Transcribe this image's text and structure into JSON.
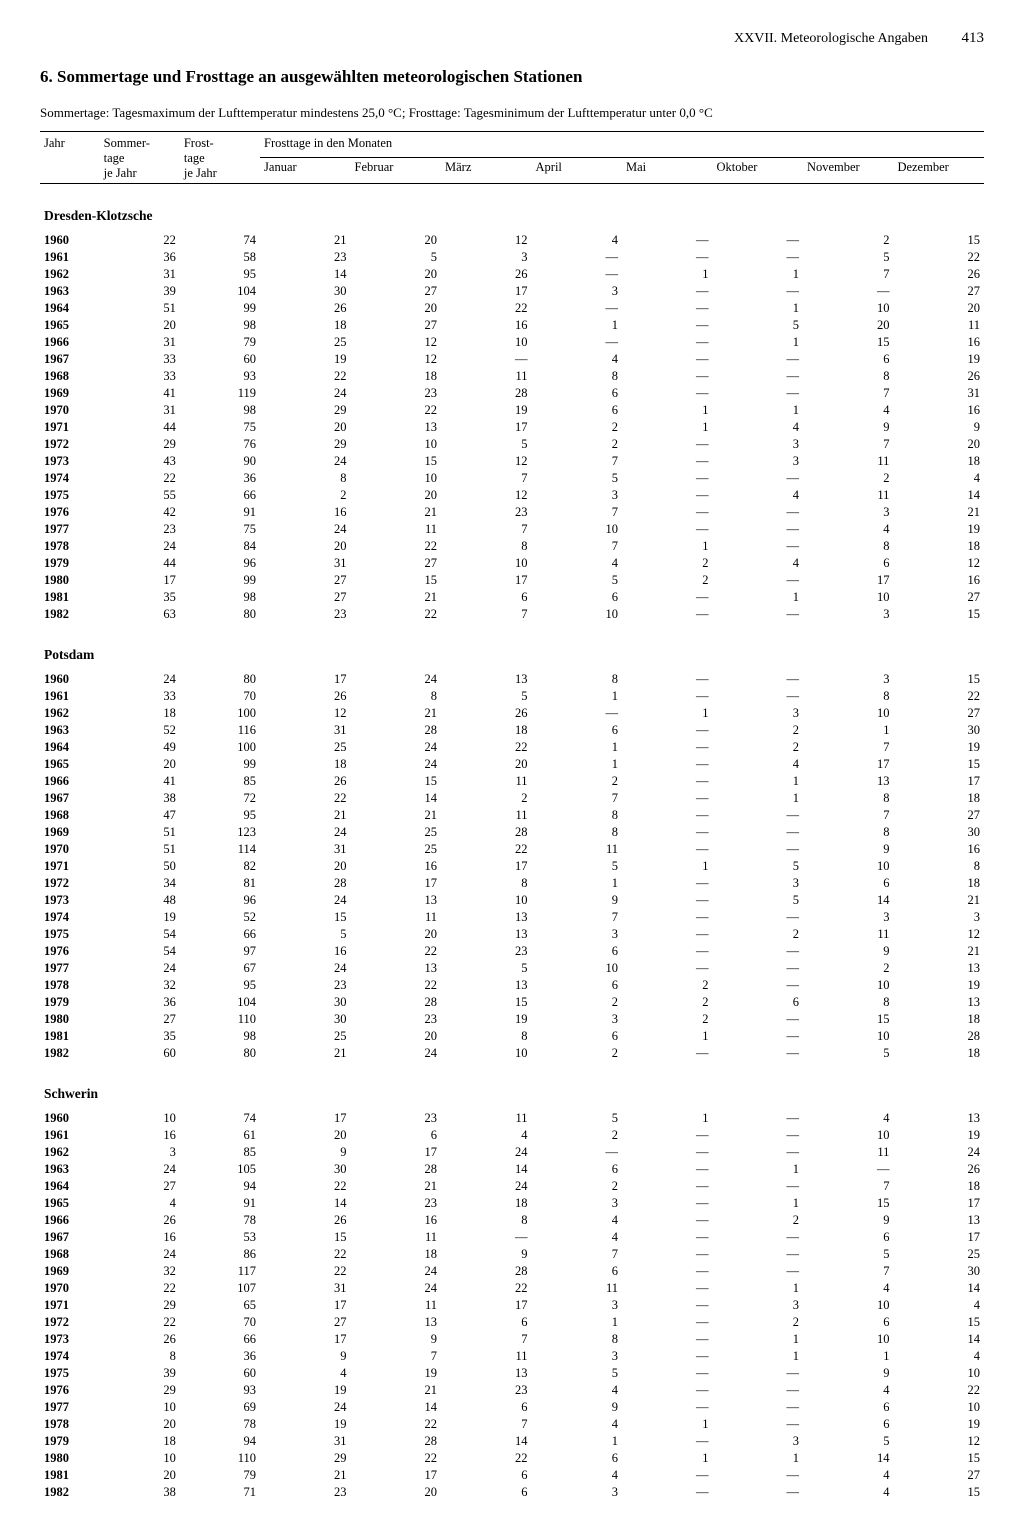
{
  "header": {
    "chapter": "XXVII. Meteorologische Angaben",
    "pagenum": "413"
  },
  "title": "6. Sommertage und Frosttage an ausgewählten meteorologischen Stationen",
  "subtitle": "Sommertage: Tagesmaximum der Lufttemperatur mindestens 25,0 °C; Frosttage: Tagesminimum der Lufttemperatur unter 0,0 °C",
  "table": {
    "col_year": "Jahr",
    "col_summer": "Sommer-\ntage\nje Jahr",
    "col_frost": "Frost-\ntage\nje Jahr",
    "col_group_frost_months": "Frosttage in den Monaten",
    "months": [
      "Januar",
      "Februar",
      "März",
      "April",
      "Mai",
      "Oktober",
      "November",
      "Dezember"
    ],
    "stations": [
      {
        "name": "Dresden-Klotzsche",
        "rows": [
          [
            "1960",
            "22",
            "74",
            "21",
            "20",
            "12",
            "4",
            "—",
            "—",
            "2",
            "15"
          ],
          [
            "1961",
            "36",
            "58",
            "23",
            "5",
            "3",
            "—",
            "—",
            "—",
            "5",
            "22"
          ],
          [
            "1962",
            "31",
            "95",
            "14",
            "20",
            "26",
            "—",
            "1",
            "1",
            "7",
            "26"
          ],
          [
            "1963",
            "39",
            "104",
            "30",
            "27",
            "17",
            "3",
            "—",
            "—",
            "—",
            "27"
          ],
          [
            "1964",
            "51",
            "99",
            "26",
            "20",
            "22",
            "—",
            "—",
            "1",
            "10",
            "20"
          ],
          [
            "1965",
            "20",
            "98",
            "18",
            "27",
            "16",
            "1",
            "—",
            "5",
            "20",
            "11"
          ],
          [
            "1966",
            "31",
            "79",
            "25",
            "12",
            "10",
            "—",
            "—",
            "1",
            "15",
            "16"
          ],
          [
            "1967",
            "33",
            "60",
            "19",
            "12",
            "—",
            "4",
            "—",
            "—",
            "6",
            "19"
          ],
          [
            "1968",
            "33",
            "93",
            "22",
            "18",
            "11",
            "8",
            "—",
            "—",
            "8",
            "26"
          ],
          [
            "1969",
            "41",
            "119",
            "24",
            "23",
            "28",
            "6",
            "—",
            "—",
            "7",
            "31"
          ],
          [
            "1970",
            "31",
            "98",
            "29",
            "22",
            "19",
            "6",
            "1",
            "1",
            "4",
            "16"
          ],
          [
            "1971",
            "44",
            "75",
            "20",
            "13",
            "17",
            "2",
            "1",
            "4",
            "9",
            "9"
          ],
          [
            "1972",
            "29",
            "76",
            "29",
            "10",
            "5",
            "2",
            "—",
            "3",
            "7",
            "20"
          ],
          [
            "1973",
            "43",
            "90",
            "24",
            "15",
            "12",
            "7",
            "—",
            "3",
            "11",
            "18"
          ],
          [
            "1974",
            "22",
            "36",
            "8",
            "10",
            "7",
            "5",
            "—",
            "—",
            "2",
            "4"
          ],
          [
            "1975",
            "55",
            "66",
            "2",
            "20",
            "12",
            "3",
            "—",
            "4",
            "11",
            "14"
          ],
          [
            "1976",
            "42",
            "91",
            "16",
            "21",
            "23",
            "7",
            "—",
            "—",
            "3",
            "21"
          ],
          [
            "1977",
            "23",
            "75",
            "24",
            "11",
            "7",
            "10",
            "—",
            "—",
            "4",
            "19"
          ],
          [
            "1978",
            "24",
            "84",
            "20",
            "22",
            "8",
            "7",
            "1",
            "—",
            "8",
            "18"
          ],
          [
            "1979",
            "44",
            "96",
            "31",
            "27",
            "10",
            "4",
            "2",
            "4",
            "6",
            "12"
          ],
          [
            "1980",
            "17",
            "99",
            "27",
            "15",
            "17",
            "5",
            "2",
            "—",
            "17",
            "16"
          ],
          [
            "1981",
            "35",
            "98",
            "27",
            "21",
            "6",
            "6",
            "—",
            "1",
            "10",
            "27"
          ],
          [
            "1982",
            "63",
            "80",
            "23",
            "22",
            "7",
            "10",
            "—",
            "—",
            "3",
            "15"
          ]
        ]
      },
      {
        "name": "Potsdam",
        "rows": [
          [
            "1960",
            "24",
            "80",
            "17",
            "24",
            "13",
            "8",
            "—",
            "—",
            "3",
            "15"
          ],
          [
            "1961",
            "33",
            "70",
            "26",
            "8",
            "5",
            "1",
            "—",
            "—",
            "8",
            "22"
          ],
          [
            "1962",
            "18",
            "100",
            "12",
            "21",
            "26",
            "—",
            "1",
            "3",
            "10",
            "27"
          ],
          [
            "1963",
            "52",
            "116",
            "31",
            "28",
            "18",
            "6",
            "—",
            "2",
            "1",
            "30"
          ],
          [
            "1964",
            "49",
            "100",
            "25",
            "24",
            "22",
            "1",
            "—",
            "2",
            "7",
            "19"
          ],
          [
            "1965",
            "20",
            "99",
            "18",
            "24",
            "20",
            "1",
            "—",
            "4",
            "17",
            "15"
          ],
          [
            "1966",
            "41",
            "85",
            "26",
            "15",
            "11",
            "2",
            "—",
            "1",
            "13",
            "17"
          ],
          [
            "1967",
            "38",
            "72",
            "22",
            "14",
            "2",
            "7",
            "—",
            "1",
            "8",
            "18"
          ],
          [
            "1968",
            "47",
            "95",
            "21",
            "21",
            "11",
            "8",
            "—",
            "—",
            "7",
            "27"
          ],
          [
            "1969",
            "51",
            "123",
            "24",
            "25",
            "28",
            "8",
            "—",
            "—",
            "8",
            "30"
          ],
          [
            "1970",
            "51",
            "114",
            "31",
            "25",
            "22",
            "11",
            "—",
            "—",
            "9",
            "16"
          ],
          [
            "1971",
            "50",
            "82",
            "20",
            "16",
            "17",
            "5",
            "1",
            "5",
            "10",
            "8"
          ],
          [
            "1972",
            "34",
            "81",
            "28",
            "17",
            "8",
            "1",
            "—",
            "3",
            "6",
            "18"
          ],
          [
            "1973",
            "48",
            "96",
            "24",
            "13",
            "10",
            "9",
            "—",
            "5",
            "14",
            "21"
          ],
          [
            "1974",
            "19",
            "52",
            "15",
            "11",
            "13",
            "7",
            "—",
            "—",
            "3",
            "3"
          ],
          [
            "1975",
            "54",
            "66",
            "5",
            "20",
            "13",
            "3",
            "—",
            "2",
            "11",
            "12"
          ],
          [
            "1976",
            "54",
            "97",
            "16",
            "22",
            "23",
            "6",
            "—",
            "—",
            "9",
            "21"
          ],
          [
            "1977",
            "24",
            "67",
            "24",
            "13",
            "5",
            "10",
            "—",
            "—",
            "2",
            "13"
          ],
          [
            "1978",
            "32",
            "95",
            "23",
            "22",
            "13",
            "6",
            "2",
            "—",
            "10",
            "19"
          ],
          [
            "1979",
            "36",
            "104",
            "30",
            "28",
            "15",
            "2",
            "2",
            "6",
            "8",
            "13"
          ],
          [
            "1980",
            "27",
            "110",
            "30",
            "23",
            "19",
            "3",
            "2",
            "—",
            "15",
            "18"
          ],
          [
            "1981",
            "35",
            "98",
            "25",
            "20",
            "8",
            "6",
            "1",
            "—",
            "10",
            "28"
          ],
          [
            "1982",
            "60",
            "80",
            "21",
            "24",
            "10",
            "2",
            "—",
            "—",
            "5",
            "18"
          ]
        ]
      },
      {
        "name": "Schwerin",
        "rows": [
          [
            "1960",
            "10",
            "74",
            "17",
            "23",
            "11",
            "5",
            "1",
            "—",
            "4",
            "13"
          ],
          [
            "1961",
            "16",
            "61",
            "20",
            "6",
            "4",
            "2",
            "—",
            "—",
            "10",
            "19"
          ],
          [
            "1962",
            "3",
            "85",
            "9",
            "17",
            "24",
            "—",
            "—",
            "—",
            "11",
            "24"
          ],
          [
            "1963",
            "24",
            "105",
            "30",
            "28",
            "14",
            "6",
            "—",
            "1",
            "—",
            "26"
          ],
          [
            "1964",
            "27",
            "94",
            "22",
            "21",
            "24",
            "2",
            "—",
            "—",
            "7",
            "18"
          ],
          [
            "1965",
            "4",
            "91",
            "14",
            "23",
            "18",
            "3",
            "—",
            "1",
            "15",
            "17"
          ],
          [
            "1966",
            "26",
            "78",
            "26",
            "16",
            "8",
            "4",
            "—",
            "2",
            "9",
            "13"
          ],
          [
            "1967",
            "16",
            "53",
            "15",
            "11",
            "—",
            "4",
            "—",
            "—",
            "6",
            "17"
          ],
          [
            "1968",
            "24",
            "86",
            "22",
            "18",
            "9",
            "7",
            "—",
            "—",
            "5",
            "25"
          ],
          [
            "1969",
            "32",
            "117",
            "22",
            "24",
            "28",
            "6",
            "—",
            "—",
            "7",
            "30"
          ],
          [
            "1970",
            "22",
            "107",
            "31",
            "24",
            "22",
            "11",
            "—",
            "1",
            "4",
            "14"
          ],
          [
            "1971",
            "29",
            "65",
            "17",
            "11",
            "17",
            "3",
            "—",
            "3",
            "10",
            "4"
          ],
          [
            "1972",
            "22",
            "70",
            "27",
            "13",
            "6",
            "1",
            "—",
            "2",
            "6",
            "15"
          ],
          [
            "1973",
            "26",
            "66",
            "17",
            "9",
            "7",
            "8",
            "—",
            "1",
            "10",
            "14"
          ],
          [
            "1974",
            "8",
            "36",
            "9",
            "7",
            "11",
            "3",
            "—",
            "1",
            "1",
            "4"
          ],
          [
            "1975",
            "39",
            "60",
            "4",
            "19",
            "13",
            "5",
            "—",
            "—",
            "9",
            "10"
          ],
          [
            "1976",
            "29",
            "93",
            "19",
            "21",
            "23",
            "4",
            "—",
            "—",
            "4",
            "22"
          ],
          [
            "1977",
            "10",
            "69",
            "24",
            "14",
            "6",
            "9",
            "—",
            "—",
            "6",
            "10"
          ],
          [
            "1978",
            "20",
            "78",
            "19",
            "22",
            "7",
            "4",
            "1",
            "—",
            "6",
            "19"
          ],
          [
            "1979",
            "18",
            "94",
            "31",
            "28",
            "14",
            "1",
            "—",
            "3",
            "5",
            "12"
          ],
          [
            "1980",
            "10",
            "110",
            "29",
            "22",
            "22",
            "6",
            "1",
            "1",
            "14",
            "15"
          ],
          [
            "1981",
            "20",
            "79",
            "21",
            "17",
            "6",
            "4",
            "—",
            "—",
            "4",
            "27"
          ],
          [
            "1982",
            "38",
            "71",
            "23",
            "20",
            "6",
            "3",
            "—",
            "—",
            "4",
            "15"
          ]
        ]
      }
    ]
  }
}
